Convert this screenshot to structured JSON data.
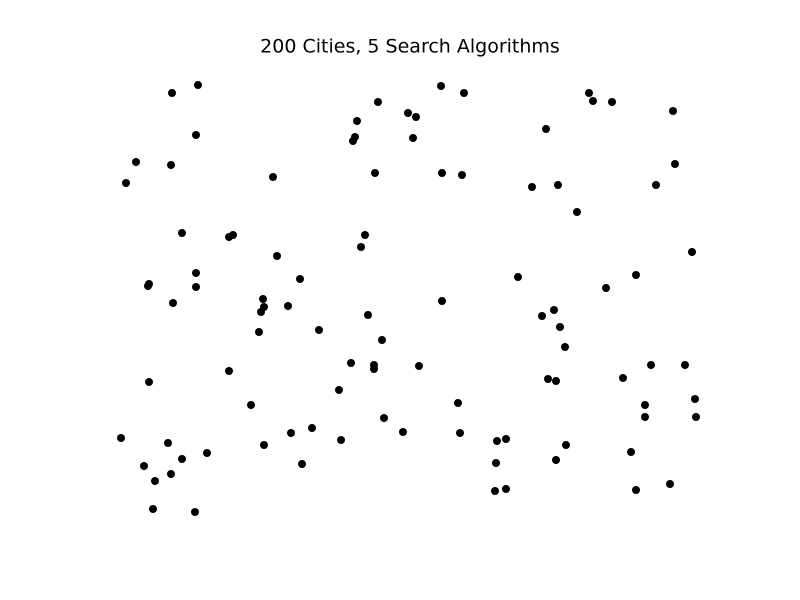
{
  "chart_data": {
    "type": "scatter",
    "title": "200 Cities, 5 Search Algorithms",
    "color": "#000000",
    "xlim": [
      100,
      720
    ],
    "ylim": [
      66,
      528
    ],
    "x": [
      172,
      198,
      196,
      136,
      171,
      126,
      273,
      182,
      229,
      233,
      196,
      149,
      148,
      196,
      173,
      277,
      300,
      263,
      264,
      261,
      288,
      259,
      319,
      149,
      229,
      251,
      121,
      168,
      182,
      207,
      144,
      171,
      155,
      153,
      195,
      264,
      291,
      312,
      302,
      341,
      339,
      351,
      374,
      374,
      368,
      382,
      419,
      384,
      403,
      458,
      460,
      361,
      365,
      357,
      355,
      353,
      378,
      408,
      416,
      413,
      375,
      441,
      464,
      442,
      462,
      442,
      518,
      546,
      532,
      558,
      577,
      589,
      593,
      612,
      673,
      675,
      656,
      692,
      636,
      606,
      542,
      554,
      560,
      565,
      548,
      556,
      623,
      651,
      685,
      645,
      645,
      695,
      696,
      497,
      506,
      566,
      556,
      631,
      496,
      495,
      506,
      636,
      670
    ],
    "y": [
      507,
      515,
      465,
      438,
      435,
      417,
      423,
      367,
      363,
      365,
      327,
      316,
      314,
      313,
      297,
      344,
      321,
      301,
      293,
      288,
      294,
      268,
      270,
      218,
      229,
      195,
      162,
      157,
      141,
      147,
      134,
      126,
      119,
      91,
      88,
      155,
      167,
      172,
      136,
      160,
      210,
      237,
      235,
      231,
      285,
      260,
      234,
      182,
      168,
      197,
      167,
      353,
      365,
      479,
      463,
      459,
      498,
      487,
      483,
      462,
      427,
      514,
      507,
      427,
      425,
      299,
      323,
      471,
      413,
      415,
      388,
      507,
      499,
      498,
      489,
      436,
      415,
      348,
      325,
      312,
      284,
      290,
      273,
      253,
      221,
      219,
      222,
      235,
      235,
      195,
      183,
      201,
      183,
      159,
      161,
      155,
      140,
      148,
      137,
      109,
      111,
      110,
      116
    ]
  }
}
